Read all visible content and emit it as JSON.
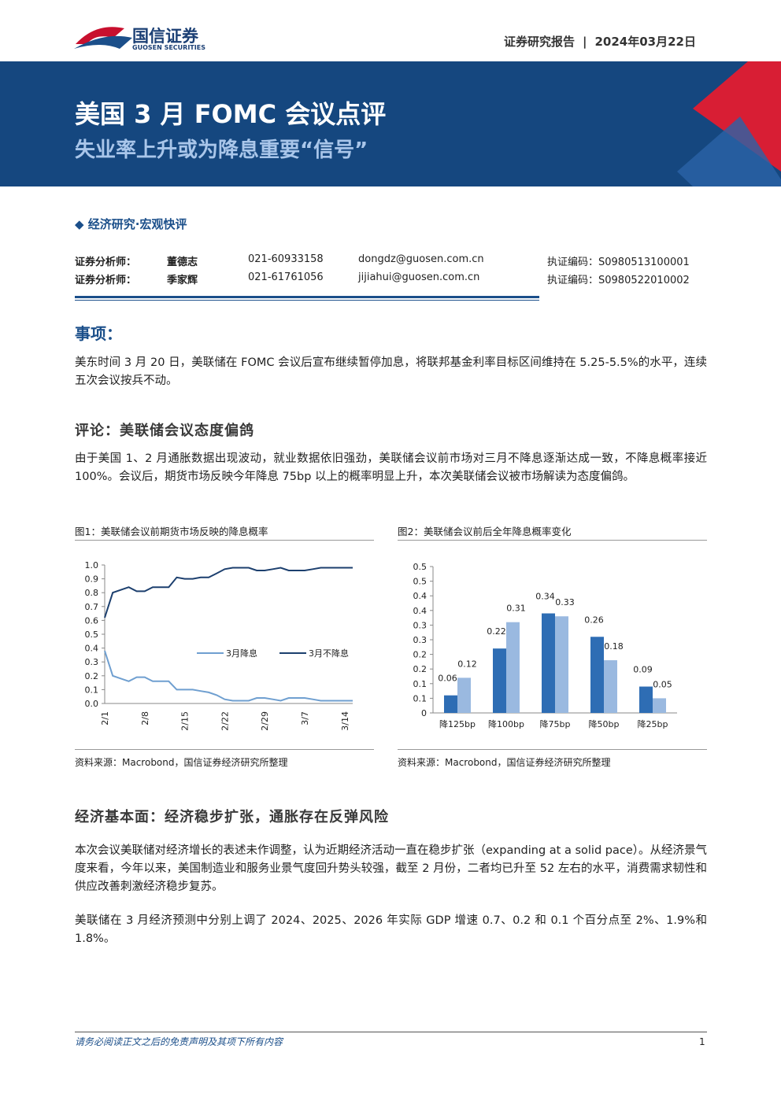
{
  "header": {
    "brand": "国信证券",
    "brand_en": "GUOSEN SECURITIES",
    "report_type": "证券研究报告",
    "date": "2024年03月22日"
  },
  "banner": {
    "title": "美国 3 月 FOMC 会议点评",
    "subtitle": "失业率上升或为降息重要“信号”"
  },
  "category": "经济研究·宏观快评",
  "analysts": [
    [
      "证券分析师：",
      "董德志",
      "021-60933158",
      "dongdz@guosen.com.cn",
      "执证编码：S0980513100001"
    ],
    [
      "证券分析师：",
      "季家辉",
      "021-61761056",
      "jijiahui@guosen.com.cn",
      "执证编码：S0980522010002"
    ]
  ],
  "sections": [
    {
      "heading": "事项：",
      "paragraphs": [
        "美东时间 3 月 20 日，美联储在 FOMC 会议后宣布继续暂停加息，将联邦基金利率目标区间维持在 5.25-5.5%的水平，连续五次会议按兵不动。"
      ]
    },
    {
      "heading": "评论：美联储会议态度偏鸽",
      "paragraphs": [
        "由于美国 1、2 月通胀数据出现波动，就业数据依旧强劲，美联储会议前市场对三月不降息逐渐达成一致，不降息概率接近 100%。会议后，期货市场反映今年降息 75bp 以上的概率明显上升，本次美联储会议被市场解读为态度偏鸽。"
      ]
    },
    {
      "heading": "经济基本面：经济稳步扩张，通胀存在反弹风险",
      "paragraphs": [
        "本次会议美联储对经济增长的表述未作调整，认为近期经济活动一直在稳步扩张（expanding at a solid pace）。从经济景气度来看，今年以来，美国制造业和服务业景气度回升势头较强，截至 2 月份，二者均已升至 52 左右的水平，消费需求韧性和供应改善刺激经济稳步复苏。",
        "美联储在 3 月经济预测中分别上调了 2024、2025、2026 年实际 GDP 增速 0.7、0.2 和 0.1 个百分点至 2%、1.9%和 1.8%。"
      ]
    }
  ],
  "figures": [
    {
      "caption": "图1：美联储会议前期货市场反映的降息概率",
      "source": "资料来源：Macrobond，国信证券经济研究所整理"
    },
    {
      "caption": "图2：美联储会议前后全年降息概率变化",
      "source": "资料来源：Macrobond，国信证券经济研究所整理"
    }
  ],
  "chart_data": [
    {
      "type": "line",
      "categories": [
        "2/1",
        null,
        null,
        null,
        null,
        "2/8",
        null,
        null,
        null,
        null,
        "2/15",
        null,
        null,
        null,
        null,
        "2/22",
        null,
        null,
        null,
        null,
        "2/29",
        null,
        null,
        null,
        null,
        "3/7",
        null,
        null,
        null,
        null,
        "3/14",
        null
      ],
      "series": [
        {
          "name": "3月降息",
          "color": "#6f9fd0",
          "values": [
            0.38,
            0.2,
            0.18,
            0.16,
            0.19,
            0.19,
            0.16,
            0.16,
            0.16,
            0.1,
            0.1,
            0.1,
            0.09,
            0.08,
            0.06,
            0.03,
            0.02,
            0.02,
            0.02,
            0.04,
            0.04,
            0.03,
            0.02,
            0.04,
            0.04,
            0.04,
            0.03,
            0.02,
            0.02,
            0.02,
            0.02,
            0.02
          ]
        },
        {
          "name": "3月不降息",
          "color": "#1c3f6e",
          "values": [
            0.62,
            0.8,
            0.82,
            0.84,
            0.81,
            0.81,
            0.84,
            0.84,
            0.84,
            0.91,
            0.9,
            0.9,
            0.91,
            0.91,
            0.94,
            0.97,
            0.98,
            0.98,
            0.98,
            0.96,
            0.96,
            0.97,
            0.98,
            0.96,
            0.96,
            0.96,
            0.97,
            0.98,
            0.98,
            0.98,
            0.98,
            0.98
          ]
        }
      ],
      "ylim": [
        0,
        1
      ],
      "yticks": [
        {
          "value": 0,
          "label": "0.0"
        },
        0.1,
        0.2,
        0.3,
        0.4,
        0.5,
        0.6,
        0.7,
        0.8,
        0.9,
        {
          "value": 1,
          "label": "1.0"
        }
      ]
    },
    {
      "type": "bar",
      "categories": [
        "降125bp",
        "降100bp",
        "降75bp",
        "降50bp",
        "降25bp"
      ],
      "series": [
        {
          "color": "#2e6db4",
          "values": [
            0.06,
            0.22,
            0.34,
            0.26,
            0.09
          ]
        },
        {
          "color": "#9ab9e0",
          "values": [
            0.12,
            0.31,
            0.33,
            0.18,
            0.05
          ]
        }
      ],
      "ylim": [
        0,
        0.5
      ],
      "yticks": [
        0,
        {
          "value": 0.05,
          "label": "0.1"
        },
        0.1,
        {
          "value": 0.15,
          "label": "0.2"
        },
        0.2,
        {
          "value": 0.25,
          "label": "0.3"
        },
        0.3,
        {
          "value": 0.35,
          "label": "0.4"
        },
        0.4,
        {
          "value": 0.45,
          "label": "0.5"
        },
        0.5
      ]
    }
  ],
  "footer": {
    "disclaimer": "请务必阅读正文之后的免责声明及其项下所有内容",
    "page_number": "1"
  }
}
